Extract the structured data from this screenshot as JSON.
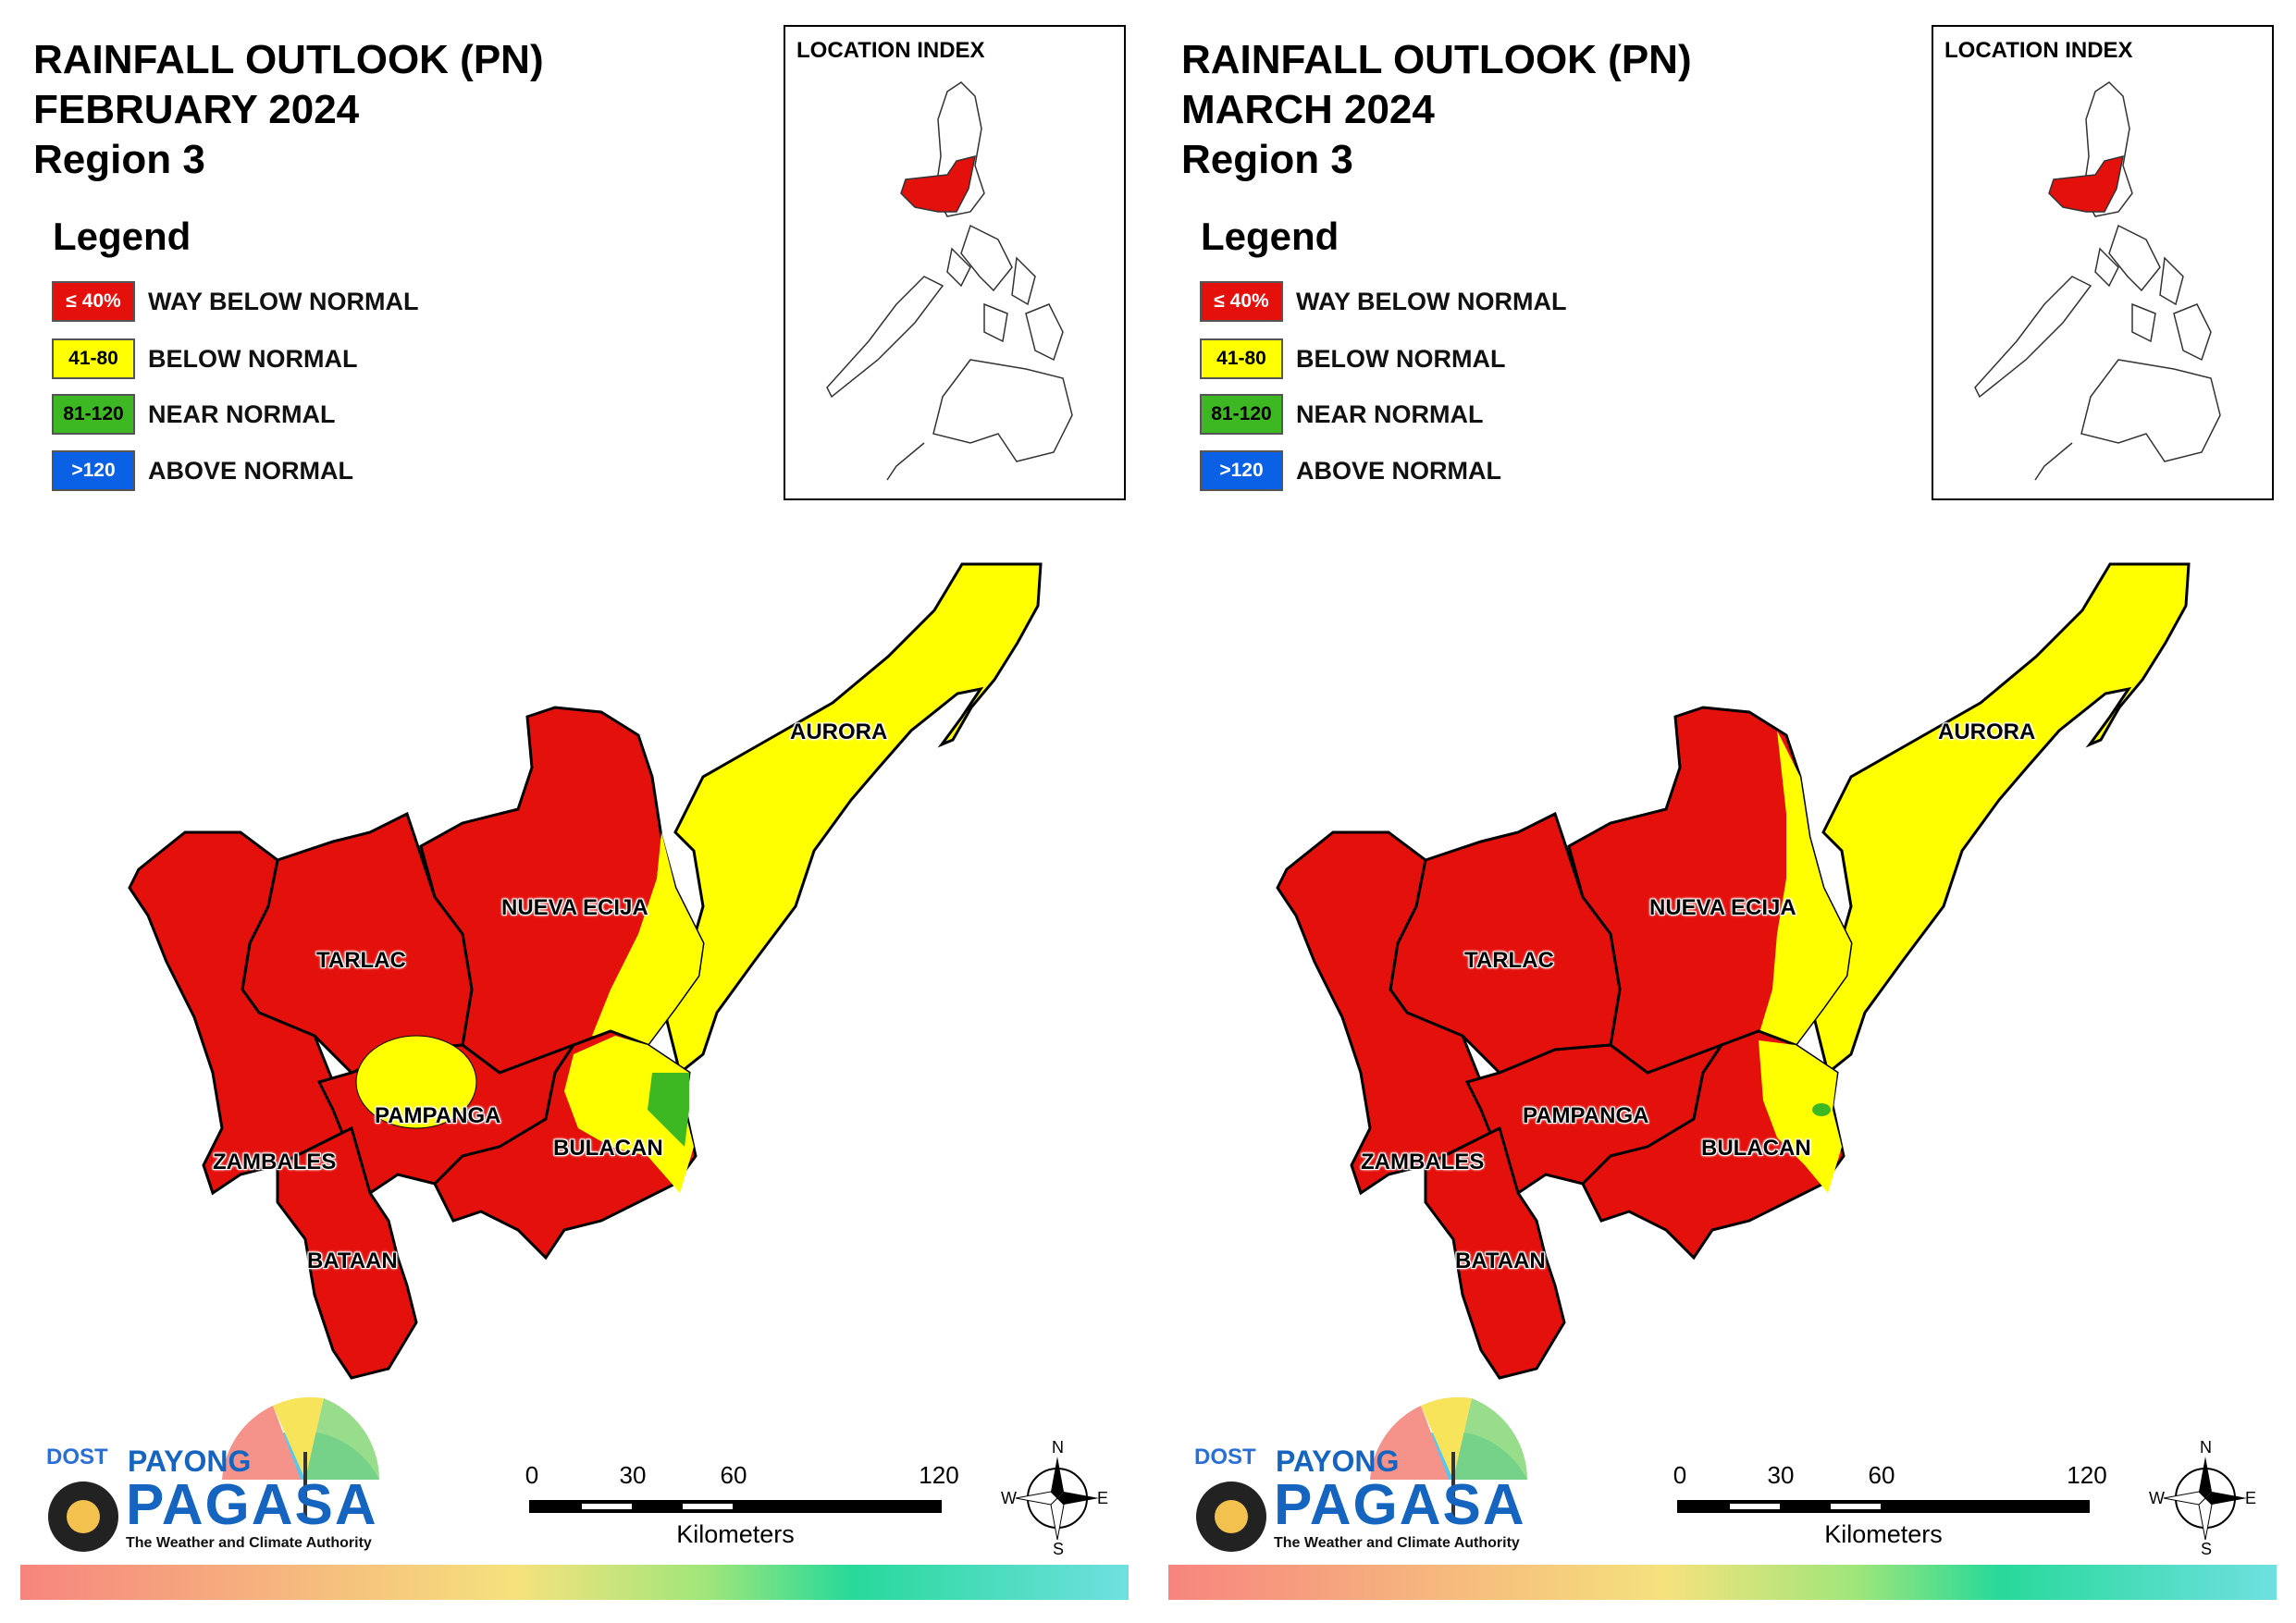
{
  "panels": [
    {
      "title_line1": "RAINFALL OUTLOOK (PN)",
      "title_line2": "FEBRUARY 2024",
      "title_line3": "Region 3",
      "legend": {
        "title": "Legend",
        "items": [
          {
            "range": "≤ 40%",
            "label": "WAY BELOW NORMAL",
            "color": "#e4100c"
          },
          {
            "range": "41-80",
            "label": "BELOW NORMAL",
            "color": "#ffff00"
          },
          {
            "range": "81-120",
            "label": "NEAR NORMAL",
            "color": "#3eb822"
          },
          {
            "range": ">120",
            "label": "ABOVE NORMAL",
            "color": "#0a61e6"
          }
        ]
      },
      "inset_title": "LOCATION INDEX",
      "provinces": {
        "aurora": "AURORA",
        "nueva_ecija": "NUEVA ECIJA",
        "tarlac": "TARLAC",
        "pampanga": "PAMPANGA",
        "bulacan": "BULACAN",
        "zambales": "ZAMBALES",
        "bataan": "BATAAN"
      },
      "logo": {
        "dost": "DOST",
        "payong": "PAYONG",
        "pagasa": "PAGASA",
        "tagline": "The Weather and Climate Authority"
      },
      "scale": {
        "ticks": [
          "0",
          "30",
          "60",
          "120"
        ],
        "unit": "Kilometers"
      },
      "compass": {
        "n": "N",
        "s": "S",
        "e": "E",
        "w": "W"
      }
    },
    {
      "title_line1": "RAINFALL OUTLOOK (PN)",
      "title_line2": "MARCH 2024",
      "title_line3": "Region 3",
      "legend": {
        "title": "Legend",
        "items": [
          {
            "range": "≤ 40%",
            "label": "WAY BELOW NORMAL",
            "color": "#e4100c"
          },
          {
            "range": "41-80",
            "label": "BELOW NORMAL",
            "color": "#ffff00"
          },
          {
            "range": "81-120",
            "label": "NEAR NORMAL",
            "color": "#3eb822"
          },
          {
            "range": ">120",
            "label": "ABOVE NORMAL",
            "color": "#0a61e6"
          }
        ]
      },
      "inset_title": "LOCATION INDEX",
      "provinces": {
        "aurora": "AURORA",
        "nueva_ecija": "NUEVA ECIJA",
        "tarlac": "TARLAC",
        "pampanga": "PAMPANGA",
        "bulacan": "BULACAN",
        "zambales": "ZAMBALES",
        "bataan": "BATAAN"
      },
      "logo": {
        "dost": "DOST",
        "payong": "PAYONG",
        "pagasa": "PAGASA",
        "tagline": "The Weather and Climate Authority"
      },
      "scale": {
        "ticks": [
          "0",
          "30",
          "60",
          "120"
        ],
        "unit": "Kilometers"
      },
      "compass": {
        "n": "N",
        "s": "S",
        "e": "E",
        "w": "W"
      }
    }
  ]
}
